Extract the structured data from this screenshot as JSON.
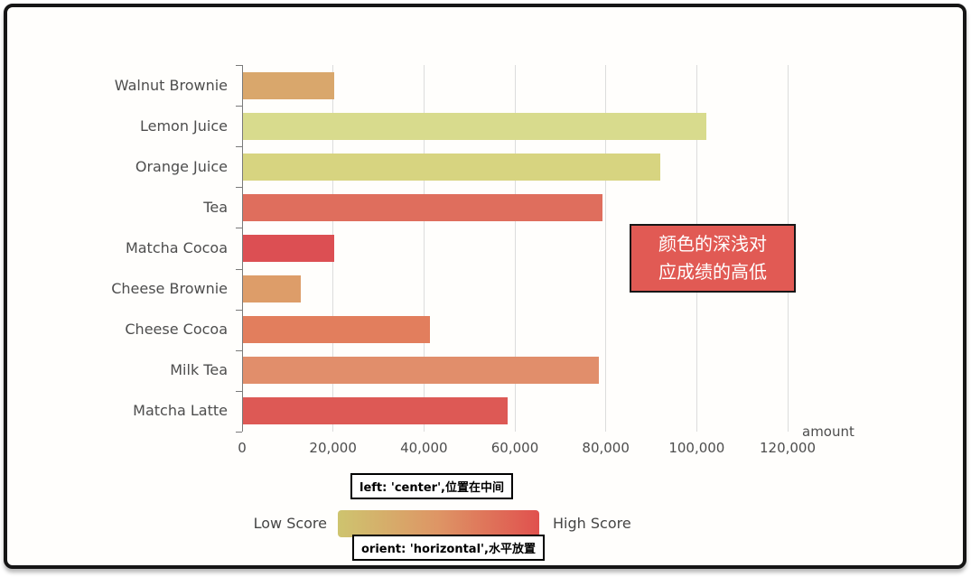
{
  "chart_data": {
    "type": "bar",
    "orient": "horizontal",
    "title": "",
    "xlabel": "amount",
    "ylabel": "",
    "xlim": [
      0,
      120000
    ],
    "x_ticks": [
      0,
      20000,
      40000,
      60000,
      80000,
      100000,
      120000
    ],
    "x_tick_labels": [
      "0",
      "20,000",
      "40,000",
      "60,000",
      "80,000",
      "100,000",
      "120,000"
    ],
    "grid": true,
    "categories": [
      "Walnut Brownie",
      "Lemon Juice",
      "Orange Juice",
      "Tea",
      "Matcha Cocoa",
      "Cheese Brownie",
      "Cheese Cocoa",
      "Milk Tea",
      "Matcha Latte"
    ],
    "series": [
      {
        "name": "amount",
        "values": [
          20112,
          101852,
          91852,
          79146,
          20145,
          12755,
          41032,
          78254,
          58212
        ]
      }
    ],
    "bar_colors": [
      "#D9A76C",
      "#D8DB8D",
      "#D7D480",
      "#DF6E5D",
      "#DC4F53",
      "#DD9D69",
      "#E27E5D",
      "#E18E6B",
      "#DD5955"
    ]
  },
  "annotation": {
    "line1": "颜色的深浅对",
    "line2": "应成绩的高低",
    "bg_color": "#E15A54"
  },
  "legend": {
    "low_label": "Low Score",
    "high_label": "High Score",
    "gradient": [
      "#CEC46F",
      "#DE9565",
      "#E0514E"
    ]
  },
  "callouts": {
    "position_label": "left: 'center',位置在中间",
    "orient_label": "orient: 'horizontal',水平放置"
  }
}
